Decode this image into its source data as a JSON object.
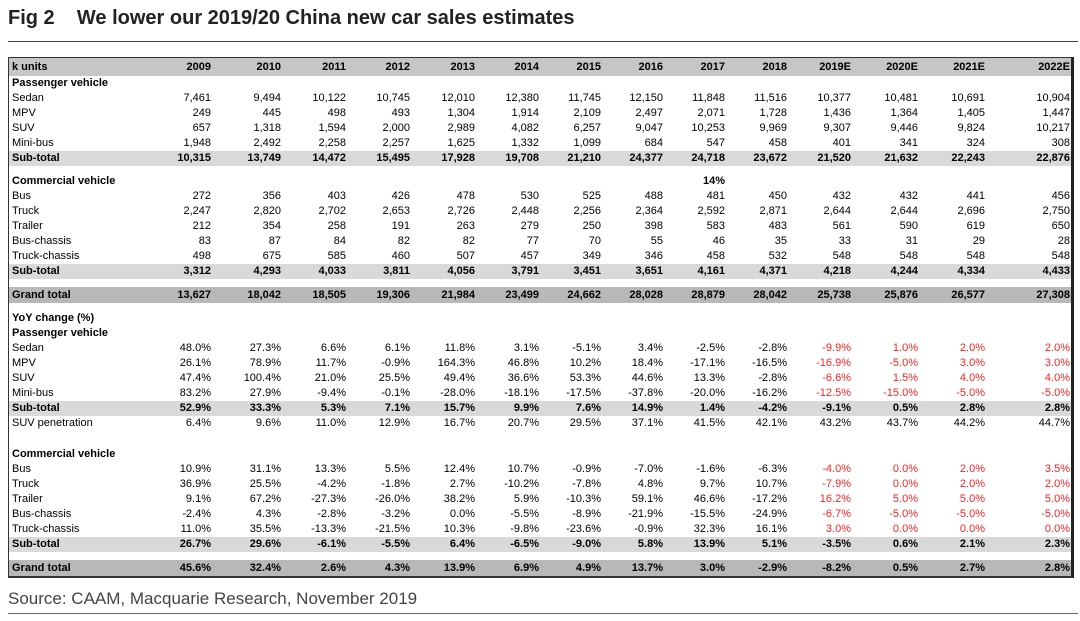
{
  "title": "Fig 2    We lower our 2019/20 China new car sales estimates",
  "source": "Source: CAAM, Macquarie Research, November 2019",
  "estimate_color": "#ff2020",
  "table": {
    "unit_label": "k units",
    "columns": [
      "2009",
      "2010",
      "2011",
      "2012",
      "2013",
      "2014",
      "2015",
      "2016",
      "2017",
      "2018",
      "2019E",
      "2020E",
      "2021E",
      "2022E"
    ],
    "rows": [
      {
        "type": "heading",
        "label": "Passenger vehicle",
        "values": []
      },
      {
        "type": "data",
        "label": "Sedan",
        "values": [
          "7,461",
          "9,494",
          "10,122",
          "10,745",
          "12,010",
          "12,380",
          "11,745",
          "12,150",
          "11,848",
          "11,516",
          "10,377",
          "10,481",
          "10,691",
          "10,904"
        ]
      },
      {
        "type": "data",
        "label": "MPV",
        "values": [
          "249",
          "445",
          "498",
          "493",
          "1,304",
          "1,914",
          "2,109",
          "2,497",
          "2,071",
          "1,728",
          "1,436",
          "1,364",
          "1,405",
          "1,447"
        ]
      },
      {
        "type": "data",
        "label": "SUV",
        "values": [
          "657",
          "1,318",
          "1,594",
          "2,000",
          "2,989",
          "4,082",
          "6,257",
          "9,047",
          "10,253",
          "9,969",
          "9,307",
          "9,446",
          "9,824",
          "10,217"
        ]
      },
      {
        "type": "data",
        "label": "Mini-bus",
        "values": [
          "1,948",
          "2,492",
          "2,258",
          "2,257",
          "1,625",
          "1,332",
          "1,099",
          "684",
          "547",
          "458",
          "401",
          "341",
          "324",
          "308"
        ]
      },
      {
        "type": "subtotal",
        "label": "Sub-total",
        "values": [
          "10,315",
          "13,749",
          "14,472",
          "15,495",
          "17,928",
          "19,708",
          "21,210",
          "24,377",
          "24,718",
          "23,672",
          "21,520",
          "21,632",
          "22,243",
          "22,876"
        ]
      },
      {
        "type": "spacer",
        "label": "",
        "values": []
      },
      {
        "type": "heading",
        "label": "Commercial vehicle",
        "values": [
          "",
          "",
          "",
          "",
          "",
          "",
          "",
          "",
          "14%",
          "",
          "",
          "",
          "",
          ""
        ]
      },
      {
        "type": "data",
        "label": "Bus",
        "values": [
          "272",
          "356",
          "403",
          "426",
          "478",
          "530",
          "525",
          "488",
          "481",
          "450",
          "432",
          "432",
          "441",
          "456"
        ]
      },
      {
        "type": "data",
        "label": "Truck",
        "values": [
          "2,247",
          "2,820",
          "2,702",
          "2,653",
          "2,726",
          "2,448",
          "2,256",
          "2,364",
          "2,592",
          "2,871",
          "2,644",
          "2,644",
          "2,696",
          "2,750"
        ]
      },
      {
        "type": "data",
        "label": "Trailer",
        "values": [
          "212",
          "354",
          "258",
          "191",
          "263",
          "279",
          "250",
          "398",
          "583",
          "483",
          "561",
          "590",
          "619",
          "650"
        ]
      },
      {
        "type": "data",
        "label": "Bus-chassis",
        "values": [
          "83",
          "87",
          "84",
          "82",
          "82",
          "77",
          "70",
          "55",
          "46",
          "35",
          "33",
          "31",
          "29",
          "28"
        ]
      },
      {
        "type": "data",
        "label": "Truck-chassis",
        "values": [
          "498",
          "675",
          "585",
          "460",
          "507",
          "457",
          "349",
          "346",
          "458",
          "532",
          "548",
          "548",
          "548",
          "548"
        ]
      },
      {
        "type": "subtotal",
        "label": "Sub-total",
        "values": [
          "3,312",
          "4,293",
          "4,033",
          "3,811",
          "4,056",
          "3,791",
          "3,451",
          "3,651",
          "4,161",
          "4,371",
          "4,218",
          "4,244",
          "4,334",
          "4,433"
        ]
      },
      {
        "type": "spacer",
        "label": "",
        "values": []
      },
      {
        "type": "grand",
        "label": "Grand total",
        "values": [
          "13,627",
          "18,042",
          "18,505",
          "19,306",
          "21,984",
          "23,499",
          "24,662",
          "28,028",
          "28,879",
          "28,042",
          "25,738",
          "25,876",
          "26,577",
          "27,308"
        ]
      },
      {
        "type": "spacer",
        "label": "",
        "values": []
      },
      {
        "type": "heading",
        "label": "YoY change (%)",
        "values": []
      },
      {
        "type": "heading",
        "label": "Passenger vehicle",
        "values": []
      },
      {
        "type": "data",
        "estimate_red": true,
        "label": "Sedan",
        "values": [
          "48.0%",
          "27.3%",
          "6.6%",
          "6.1%",
          "11.8%",
          "3.1%",
          "-5.1%",
          "3.4%",
          "-2.5%",
          "-2.8%",
          "-9.9%",
          "1.0%",
          "2.0%",
          "2.0%"
        ]
      },
      {
        "type": "data",
        "estimate_red": true,
        "label": "MPV",
        "values": [
          "26.1%",
          "78.9%",
          "11.7%",
          "-0.9%",
          "164.3%",
          "46.8%",
          "10.2%",
          "18.4%",
          "-17.1%",
          "-16.5%",
          "-16.9%",
          "-5.0%",
          "3.0%",
          "3.0%"
        ]
      },
      {
        "type": "data",
        "estimate_red": true,
        "label": "SUV",
        "values": [
          "47.4%",
          "100.4%",
          "21.0%",
          "25.5%",
          "49.4%",
          "36.6%",
          "53.3%",
          "44.6%",
          "13.3%",
          "-2.8%",
          "-6.6%",
          "1.5%",
          "4.0%",
          "4.0%"
        ]
      },
      {
        "type": "data",
        "estimate_red": true,
        "label": "Mini-bus",
        "values": [
          "83.2%",
          "27.9%",
          "-9.4%",
          "-0.1%",
          "-28.0%",
          "-18.1%",
          "-17.5%",
          "-37.8%",
          "-20.0%",
          "-16.2%",
          "-12.5%",
          "-15.0%",
          "-5.0%",
          "-5.0%"
        ]
      },
      {
        "type": "subtotal",
        "label": "Sub-total",
        "values": [
          "52.9%",
          "33.3%",
          "5.3%",
          "7.1%",
          "15.7%",
          "9.9%",
          "7.6%",
          "14.9%",
          "1.4%",
          "-4.2%",
          "-9.1%",
          "0.5%",
          "2.8%",
          "2.8%"
        ]
      },
      {
        "type": "data",
        "label": "SUV penetration",
        "values": [
          "6.4%",
          "9.6%",
          "11.0%",
          "12.9%",
          "16.7%",
          "20.7%",
          "29.5%",
          "37.1%",
          "41.5%",
          "42.1%",
          "43.2%",
          "43.7%",
          "44.2%",
          "44.7%"
        ]
      },
      {
        "type": "blank",
        "label": "",
        "values": []
      },
      {
        "type": "heading",
        "label": "Commercial vehicle",
        "values": []
      },
      {
        "type": "data",
        "estimate_red": true,
        "label": "Bus",
        "values": [
          "10.9%",
          "31.1%",
          "13.3%",
          "5.5%",
          "12.4%",
          "10.7%",
          "-0.9%",
          "-7.0%",
          "-1.6%",
          "-6.3%",
          "-4.0%",
          "0.0%",
          "2.0%",
          "3.5%"
        ]
      },
      {
        "type": "data",
        "estimate_red": true,
        "label": "Truck",
        "values": [
          "36.9%",
          "25.5%",
          "-4.2%",
          "-1.8%",
          "2.7%",
          "-10.2%",
          "-7.8%",
          "4.8%",
          "9.7%",
          "10.7%",
          "-7.9%",
          "0.0%",
          "2.0%",
          "2.0%"
        ]
      },
      {
        "type": "data",
        "estimate_red": true,
        "label": "Trailer",
        "values": [
          "9.1%",
          "67.2%",
          "-27.3%",
          "-26.0%",
          "38.2%",
          "5.9%",
          "-10.3%",
          "59.1%",
          "46.6%",
          "-17.2%",
          "16.2%",
          "5.0%",
          "5.0%",
          "5.0%"
        ]
      },
      {
        "type": "data",
        "estimate_red": true,
        "label": "Bus-chassis",
        "values": [
          "-2.4%",
          "4.3%",
          "-2.8%",
          "-3.2%",
          "0.0%",
          "-5.5%",
          "-8.9%",
          "-21.9%",
          "-15.5%",
          "-24.9%",
          "-6.7%",
          "-5.0%",
          "-5.0%",
          "-5.0%"
        ]
      },
      {
        "type": "data",
        "estimate_red": true,
        "label": "Truck-chassis",
        "values": [
          "11.0%",
          "35.5%",
          "-13.3%",
          "-21.5%",
          "10.3%",
          "-9.8%",
          "-23.6%",
          "-0.9%",
          "32.3%",
          "16.1%",
          "3.0%",
          "0.0%",
          "0.0%",
          "0.0%"
        ]
      },
      {
        "type": "subtotal",
        "label": "Sub-total",
        "values": [
          "26.7%",
          "29.6%",
          "-6.1%",
          "-5.5%",
          "6.4%",
          "-6.5%",
          "-9.0%",
          "5.8%",
          "13.9%",
          "5.1%",
          "-3.5%",
          "0.6%",
          "2.1%",
          "2.3%"
        ]
      },
      {
        "type": "spacer",
        "label": "",
        "values": []
      },
      {
        "type": "grand",
        "label": "Grand total",
        "values": [
          "45.6%",
          "32.4%",
          "2.6%",
          "4.3%",
          "13.9%",
          "6.9%",
          "4.9%",
          "13.7%",
          "3.0%",
          "-2.9%",
          "-8.2%",
          "0.5%",
          "2.7%",
          "2.8%"
        ]
      }
    ]
  }
}
